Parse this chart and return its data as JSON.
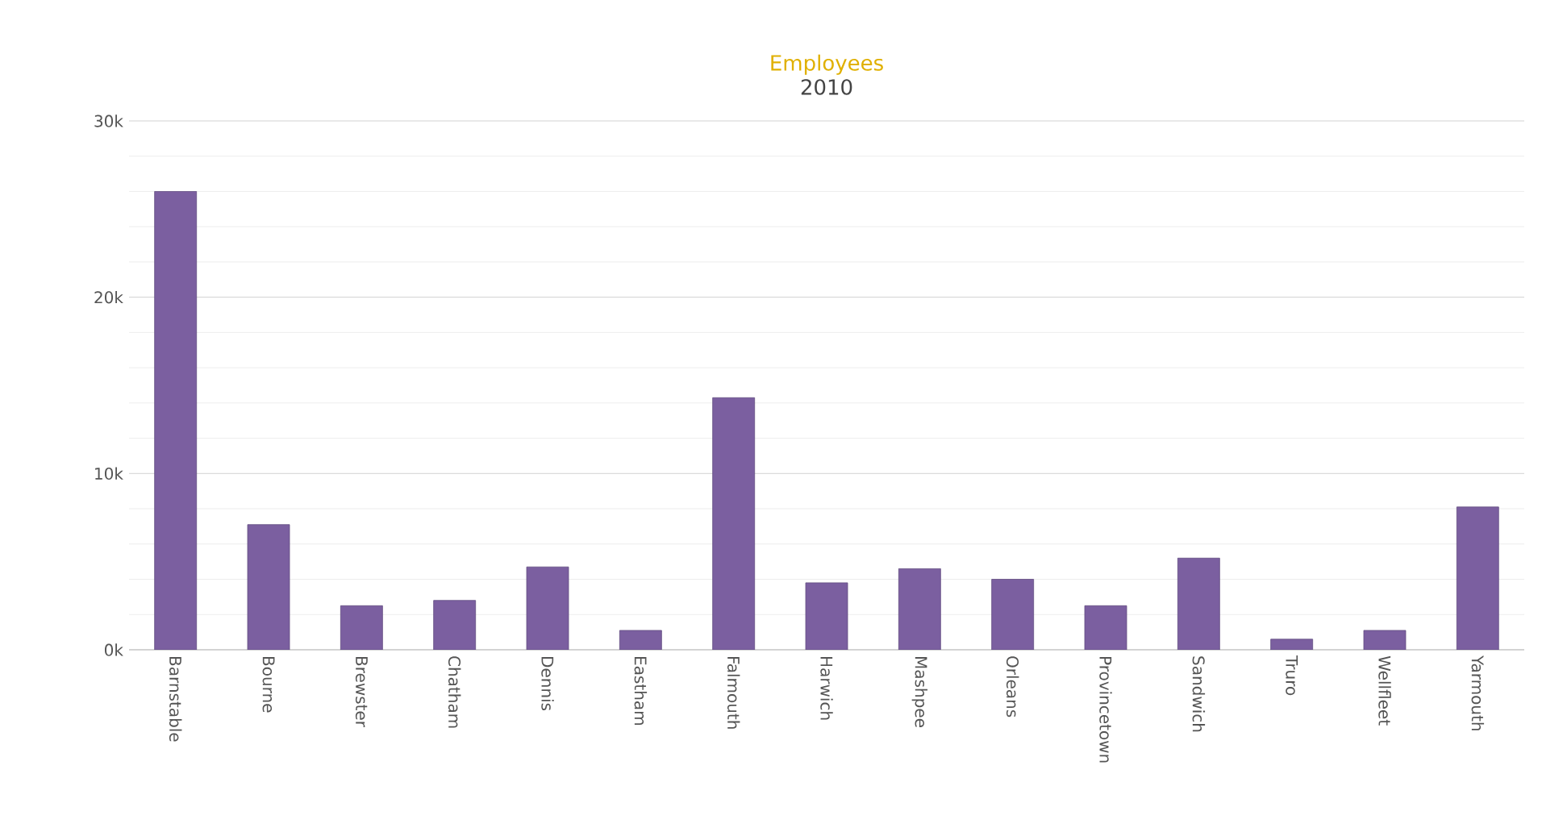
{
  "chart_data": {
    "type": "bar",
    "title": "Employees",
    "subtitle": "2010",
    "categories": [
      "Barnstable",
      "Bourne",
      "Brewster",
      "Chatham",
      "Dennis",
      "Eastham",
      "Falmouth",
      "Harwich",
      "Mashpee",
      "Orleans",
      "Provincetown",
      "Sandwich",
      "Truro",
      "Wellfleet",
      "Yarmouth"
    ],
    "values": [
      26000,
      7100,
      2500,
      2800,
      4700,
      1100,
      14300,
      3800,
      4600,
      4000,
      2500,
      5200,
      600,
      1100,
      8100
    ],
    "color": "#7b5fa0",
    "ylim": [
      0,
      30000
    ],
    "yticks": [
      {
        "value": 0,
        "label": "0k"
      },
      {
        "value": 10000,
        "label": "10k"
      },
      {
        "value": 20000,
        "label": "20k"
      },
      {
        "value": 30000,
        "label": "30k"
      }
    ],
    "grid": "y"
  }
}
